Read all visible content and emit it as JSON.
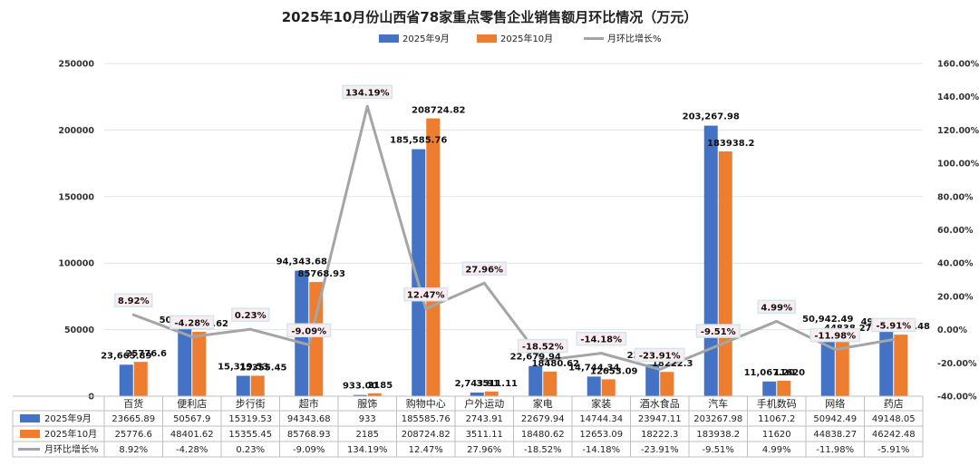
{
  "chart_data": {
    "type": "bar",
    "title": "2025年10月份山西省78家重点零售企业销售额月环比情况（万元）",
    "categories": [
      "百货",
      "便利店",
      "步行街",
      "超市",
      "服饰",
      "购物中心",
      "户外运动",
      "家电",
      "家装",
      "酒水食品",
      "汽车",
      "手机数码",
      "网络",
      "药店"
    ],
    "series": [
      {
        "name": "2025年9月",
        "color": "#4472C4",
        "values": [
          23665.89,
          50567.9,
          15319.53,
          94343.68,
          933,
          185585.76,
          2743.91,
          22679.94,
          14744.34,
          23947.11,
          203267.98,
          11067.2,
          50942.49,
          49148.05
        ],
        "table_text": [
          "23665.89",
          "50567.9",
          "15319.53",
          "94343.68",
          "933",
          "185585.76",
          "2743.91",
          "22679.94",
          "14744.34",
          "23947.11",
          "203267.98",
          "11067.2",
          "50942.49",
          "49148.05"
        ],
        "labels": [
          "23,665.89",
          "50,567.90",
          "15,319.53",
          "94,343.68",
          "933.00",
          "185,585.76",
          "2,743.91",
          "22,679.94",
          "14,744.34",
          "23,947.11",
          "203,267.98",
          "11,067.20",
          "50,942.49",
          "49,148.05"
        ]
      },
      {
        "name": "2025年10月",
        "color": "#ED7D31",
        "values": [
          25776.6,
          48401.62,
          15355.45,
          85768.93,
          2185,
          208724.82,
          3511.11,
          18480.62,
          12653.09,
          18222.3,
          183938.2,
          11620,
          44838.27,
          46242.48
        ],
        "table_text": [
          "25776.6",
          "48401.62",
          "15355.45",
          "85768.93",
          "2185",
          "208724.82",
          "3511.11",
          "18480.62",
          "12653.09",
          "18222.3",
          "183938.2",
          "11620",
          "44838.27",
          "46242.48"
        ],
        "labels": [
          "25776.6",
          "48401.62",
          "15355.45",
          "85768.93",
          "2185",
          "208724.82",
          "3511.11",
          "18480.62",
          "12653.09",
          "18222.3",
          "183938.2",
          "11620",
          "44838.27",
          "46242.48"
        ]
      },
      {
        "name": "月环比增长%",
        "color": "#A5A5A5",
        "axis": "right",
        "values": [
          8.92,
          -4.28,
          0.23,
          -9.09,
          134.19,
          12.47,
          27.96,
          -18.52,
          -14.18,
          -23.91,
          -9.51,
          4.99,
          -11.98,
          -5.91
        ],
        "labels": [
          "8.92%",
          "-4.28%",
          "0.23%",
          "-9.09%",
          "134.19%",
          "12.47%",
          "27.96%",
          "-18.52%",
          "-14.18%",
          "-23.91%",
          "-9.51%",
          "4.99%",
          "-11.98%",
          "-5.91%"
        ]
      }
    ],
    "y_left": {
      "min": 0,
      "max": 250000,
      "ticks": [
        0,
        50000,
        100000,
        150000,
        200000,
        250000
      ],
      "tick_labels": [
        "0",
        "50000",
        "100000",
        "150000",
        "200000",
        "250000"
      ]
    },
    "y_right": {
      "min": -40,
      "max": 160,
      "ticks": [
        -40,
        -20,
        0,
        20,
        40,
        60,
        80,
        100,
        120,
        140,
        160
      ],
      "tick_labels": [
        "-40.00%",
        "-20.00%",
        "0.00%",
        "20.00%",
        "40.00%",
        "60.00%",
        "80.00%",
        "100.00%",
        "120.00%",
        "140.00%",
        "160.00%"
      ]
    },
    "legend_position": "top",
    "grid": true
  }
}
